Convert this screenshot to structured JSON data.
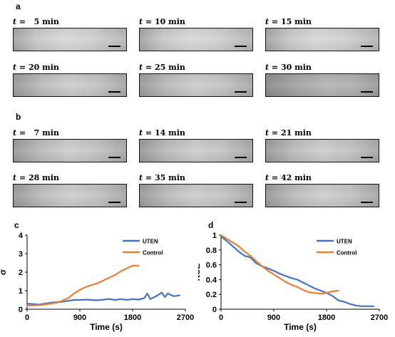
{
  "panel_a": {
    "letter": "a",
    "frames": [
      {
        "var": "t",
        "label": " =   5 min"
      },
      {
        "var": "t",
        "label": " = 10 min"
      },
      {
        "var": "t",
        "label": " = 15 min"
      },
      {
        "var": "t",
        "label": " = 20 min"
      },
      {
        "var": "t",
        "label": " = 25 min"
      },
      {
        "var": "t",
        "label": " = 30 min"
      }
    ]
  },
  "panel_b": {
    "letter": "b",
    "frames": [
      {
        "var": "t",
        "label": " =   7 min"
      },
      {
        "var": "t",
        "label": " = 14 min"
      },
      {
        "var": "t",
        "label": " = 21 min"
      },
      {
        "var": "t",
        "label": " = 28 min"
      },
      {
        "var": "t",
        "label": " = 35 min"
      },
      {
        "var": "t",
        "label": " = 42 min"
      }
    ]
  },
  "chart_data": [
    {
      "panel": "c",
      "type": "line",
      "xlabel": "Time (s)",
      "ylabel": "σ",
      "xlim": [
        0,
        2700
      ],
      "ylim": [
        0,
        4
      ],
      "xticks": [
        "0",
        "900",
        "1800",
        "2700"
      ],
      "yticks": [
        "0",
        "1",
        "2",
        "3",
        "4"
      ],
      "legend_position": "top-right",
      "series": [
        {
          "name": "UTEN",
          "color": "#4472c4",
          "x": [
            0,
            100,
            200,
            300,
            400,
            500,
            600,
            700,
            800,
            900,
            1000,
            1100,
            1200,
            1300,
            1400,
            1500,
            1600,
            1700,
            1800,
            1900,
            2000,
            2050,
            2100,
            2200,
            2300,
            2350,
            2400,
            2500,
            2600
          ],
          "y": [
            0.3,
            0.28,
            0.25,
            0.3,
            0.35,
            0.38,
            0.4,
            0.45,
            0.5,
            0.5,
            0.52,
            0.5,
            0.48,
            0.52,
            0.55,
            0.5,
            0.55,
            0.5,
            0.55,
            0.52,
            0.6,
            0.85,
            0.55,
            0.7,
            0.9,
            0.65,
            0.85,
            0.7,
            0.75
          ]
        },
        {
          "name": "Control",
          "color": "#ed7d31",
          "x": [
            0,
            100,
            200,
            300,
            400,
            500,
            600,
            700,
            800,
            900,
            1000,
            1100,
            1200,
            1300,
            1400,
            1500,
            1600,
            1700,
            1800,
            1900
          ],
          "y": [
            0.2,
            0.2,
            0.22,
            0.25,
            0.3,
            0.35,
            0.45,
            0.6,
            0.85,
            1.05,
            1.2,
            1.3,
            1.4,
            1.55,
            1.7,
            1.85,
            2.05,
            2.2,
            2.35,
            2.35
          ]
        }
      ]
    },
    {
      "panel": "d",
      "type": "line",
      "xlabel": "Time (s)",
      "ylabel": "NSE",
      "xlim": [
        0,
        2700
      ],
      "ylim": [
        0,
        1
      ],
      "xticks": [
        "0",
        "900",
        "1800",
        "2700"
      ],
      "yticks": [
        "0",
        "0.2",
        "0.4",
        "0.6",
        "0.8",
        "1"
      ],
      "legend_position": "top-right",
      "series": [
        {
          "name": "UTEN",
          "color": "#4472c4",
          "x": [
            0,
            100,
            200,
            300,
            400,
            500,
            600,
            700,
            800,
            900,
            1000,
            1100,
            1200,
            1300,
            1400,
            1500,
            1600,
            1700,
            1800,
            1900,
            2000,
            2100,
            2200,
            2300,
            2400,
            2500,
            2600
          ],
          "y": [
            0.98,
            0.92,
            0.85,
            0.78,
            0.72,
            0.7,
            0.62,
            0.58,
            0.55,
            0.52,
            0.48,
            0.45,
            0.42,
            0.4,
            0.36,
            0.32,
            0.28,
            0.25,
            0.22,
            0.18,
            0.12,
            0.1,
            0.07,
            0.05,
            0.04,
            0.04,
            0.04
          ]
        },
        {
          "name": "Control",
          "color": "#ed7d31",
          "x": [
            0,
            100,
            200,
            300,
            400,
            500,
            600,
            700,
            800,
            900,
            1000,
            1100,
            1200,
            1300,
            1400,
            1500,
            1600,
            1700,
            1800,
            1900,
            2000
          ],
          "y": [
            1.0,
            0.95,
            0.9,
            0.85,
            0.78,
            0.72,
            0.65,
            0.58,
            0.52,
            0.47,
            0.42,
            0.37,
            0.33,
            0.3,
            0.26,
            0.23,
            0.22,
            0.21,
            0.22,
            0.24,
            0.25
          ]
        }
      ]
    }
  ]
}
